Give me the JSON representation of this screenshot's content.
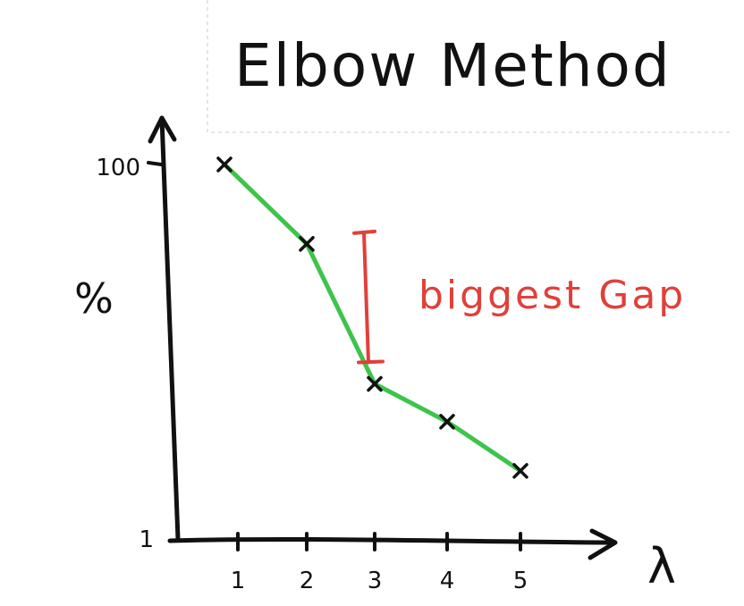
{
  "chart_data": {
    "type": "line",
    "title": "Elbow Method",
    "xlabel": "λ",
    "ylabel": "%",
    "x": [
      1,
      2,
      3,
      4,
      5
    ],
    "series": [
      {
        "values": [
          100,
          79,
          42,
          32,
          19
        ]
      }
    ],
    "xticks": [
      "1",
      "2",
      "3",
      "4",
      "5"
    ],
    "yticks": [
      {
        "value": 100,
        "label": "100"
      },
      {
        "value": 1,
        "label": "1"
      }
    ],
    "xlim": [
      0,
      6
    ],
    "ylim": [
      1,
      100
    ],
    "grid": false,
    "colors": {
      "line": "#3dc44a",
      "axis": "#111111",
      "markers": "#111111",
      "annotation": "#e0403a"
    },
    "annotation": {
      "text": "biggest Gap",
      "from": [
        2,
        79
      ],
      "to": [
        3,
        42
      ]
    }
  }
}
